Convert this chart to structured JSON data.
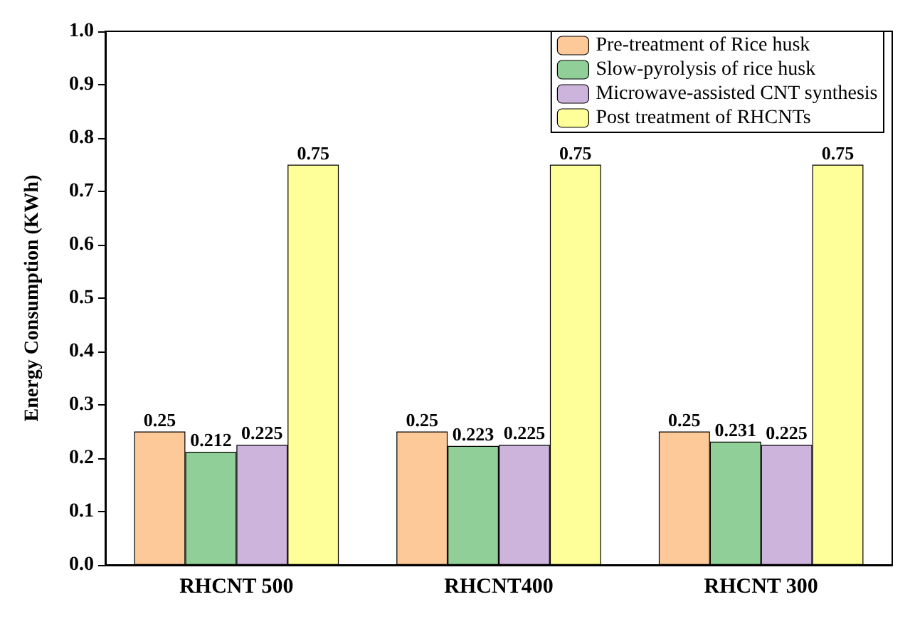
{
  "chart_data": {
    "type": "bar",
    "ylabel": "Energy Consumption (KWh)",
    "categories": [
      "RHCNT 500",
      "RHCNT400",
      "RHCNT 300"
    ],
    "series": [
      {
        "name": "Pre-treatment of Rice husk",
        "color": "#fdc998",
        "values": [
          0.25,
          0.25,
          0.25
        ]
      },
      {
        "name": "Slow-pyrolysis of rice husk",
        "color": "#90d098",
        "values": [
          0.212,
          0.223,
          0.231
        ]
      },
      {
        "name": "Microwave-assisted CNT synthesis",
        "color": "#cdb4dc",
        "values": [
          0.225,
          0.225,
          0.225
        ]
      },
      {
        "name": "Post treatment of RHCNTs",
        "color": "#ffff99",
        "values": [
          0.75,
          0.75,
          0.75
        ]
      }
    ],
    "ylim": [
      0,
      1
    ],
    "yticks": [
      {
        "value": 0,
        "label": "0.0"
      },
      {
        "value": 0.1,
        "label": "0.1"
      },
      {
        "value": 0.2,
        "label": "0.2"
      },
      {
        "value": 0.3,
        "label": "0.3"
      },
      {
        "value": 0.4,
        "label": "0.4"
      },
      {
        "value": 0.5,
        "label": "0.5"
      },
      {
        "value": 0.6,
        "label": "0.6"
      },
      {
        "value": 0.7,
        "label": "0.7"
      },
      {
        "value": 0.8,
        "label": "0.8"
      },
      {
        "value": 0.9,
        "label": "0.9"
      },
      {
        "value": 1,
        "label": "1.0"
      }
    ],
    "data_labels": true,
    "legend": "top right",
    "grid": false
  }
}
